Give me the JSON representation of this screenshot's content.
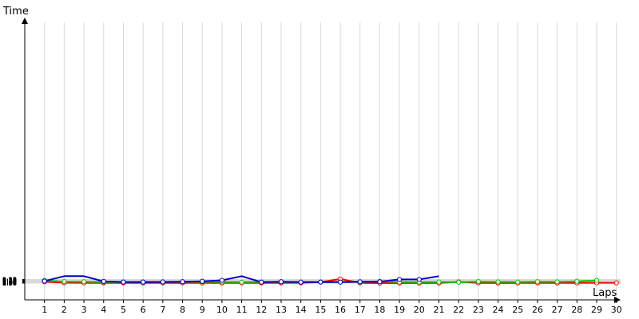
{
  "chart_data": {
    "type": "line",
    "title": "",
    "xlabel": "Laps",
    "ylabel": "Time",
    "grid": true,
    "legend": "none",
    "x": [
      1,
      2,
      3,
      4,
      5,
      6,
      7,
      8,
      9,
      10,
      11,
      12,
      13,
      14,
      15,
      16,
      17,
      18,
      19,
      20,
      21,
      22,
      23,
      24,
      25,
      26,
      27,
      28,
      29,
      30
    ],
    "y_ticks": [
      "1:57",
      "1:58",
      "1:59",
      "2:00",
      "2:01",
      "2:02",
      "2:03",
      "2:04",
      "2:05",
      "2:06",
      "2:07",
      "2:08",
      "2:09",
      "2:10",
      "2:11",
      "2:12",
      "2:13",
      "2:14",
      "2:15",
      "2:16",
      "2:17",
      "2:18",
      "2:19",
      "2:20",
      "2:21",
      "2:22",
      "2:23",
      "2:24",
      "2:25",
      "2:26",
      "2:27"
    ],
    "ylim": [
      "1:56",
      "2:30"
    ],
    "series": [
      {
        "color": "#ff0000",
        "values": [
          [
            1,
            "2:08.1"
          ],
          [
            2,
            "2:00.1"
          ],
          [
            3,
            "1:58.7"
          ],
          [
            4,
            "1:58.4"
          ],
          [
            5,
            "1:58.5"
          ],
          [
            6,
            "1:58.5"
          ],
          [
            7,
            "1:58.8"
          ],
          [
            8,
            "1:59.0"
          ],
          [
            9,
            "1:58.7"
          ],
          [
            10,
            "1:58.3"
          ],
          [
            11,
            "1:58.8"
          ],
          [
            12,
            "1:59.2"
          ],
          [
            13,
            "1:58.4"
          ],
          [
            14,
            "1:59.5"
          ],
          [
            15,
            "2:05.8"
          ],
          [
            16,
            "2:31.0"
          ],
          [
            17,
            "1:58.8"
          ],
          [
            18,
            "1:57.0"
          ],
          [
            19,
            "1:57.4"
          ],
          [
            20,
            "1:57.5"
          ],
          [
            21,
            "1:57.6"
          ],
          [
            22,
            "2:07.3"
          ],
          [
            23,
            "1:59.2"
          ],
          [
            24,
            "1:57.6"
          ],
          [
            25,
            "1:58.0"
          ],
          [
            26,
            "1:59.2"
          ],
          [
            27,
            "1:58.6"
          ],
          [
            28,
            "1:58.4"
          ],
          [
            29,
            "1:59.7"
          ],
          [
            30,
            "1:59.4"
          ]
        ]
      },
      {
        "color": "#00cc00",
        "values": [
          [
            1,
            "2:19.6"
          ],
          [
            2,
            "2:09.4"
          ],
          [
            3,
            "2:08.9"
          ],
          [
            4,
            "2:05.8"
          ],
          [
            5,
            "2:05.7"
          ],
          [
            6,
            "2:06.3"
          ],
          [
            7,
            "2:06.7"
          ],
          [
            8,
            "2:06.7"
          ],
          [
            9,
            "2:07.4"
          ],
          [
            10,
            "2:07.1"
          ],
          [
            11,
            "2:05.0"
          ],
          [
            12,
            "2:06.7"
          ],
          [
            13,
            "2:05.6"
          ],
          [
            14,
            "2:05.4"
          ],
          [
            15,
            "2:06.2"
          ],
          [
            16,
            "2:06.0"
          ],
          [
            17,
            "2:05.3"
          ],
          [
            18,
            "2:12.3"
          ],
          [
            19,
            "2:06.2"
          ],
          [
            20,
            "2:04.9"
          ],
          [
            21,
            "2:06.2"
          ],
          [
            22,
            "2:04.3"
          ],
          [
            23,
            "2:09.7"
          ],
          [
            24,
            "2:07.0"
          ],
          [
            25,
            "2:06.4"
          ],
          [
            26,
            "2:08.7"
          ],
          [
            27,
            "2:07.3"
          ],
          [
            28,
            "2:12.0"
          ],
          [
            29,
            "2:19.6"
          ]
        ]
      },
      {
        "color": "#0000cc",
        "segments": [
          [
            [
              1,
              "2:13.8"
            ],
            [
              2,
              "2:55.0"
            ],
            [
              3,
              "2:55.0"
            ],
            [
              4,
              "2:11.1"
            ],
            [
              5,
              "2:06.1"
            ],
            [
              6,
              "2:06.3"
            ],
            [
              7,
              "2:06.8"
            ],
            [
              8,
              "2:08.8"
            ],
            [
              9,
              "2:11.9"
            ],
            [
              10,
              "2:19.9"
            ],
            [
              11,
              "2:55.0"
            ],
            [
              12,
              "2:05.0"
            ],
            [
              13,
              "2:08.6"
            ],
            [
              14,
              "2:05.1"
            ],
            [
              15,
              "2:05.7"
            ],
            [
              16,
              "2:05.3"
            ],
            [
              17,
              "2:08.1"
            ],
            [
              18,
              "2:08.2"
            ],
            [
              19,
              "2:27.3"
            ],
            [
              20,
              "2:27.3"
            ],
            [
              21,
              "2:55.0"
            ]
          ]
        ],
        "markers_hidden_at_laps": [
          2,
          3,
          11,
          21
        ]
      }
    ]
  }
}
